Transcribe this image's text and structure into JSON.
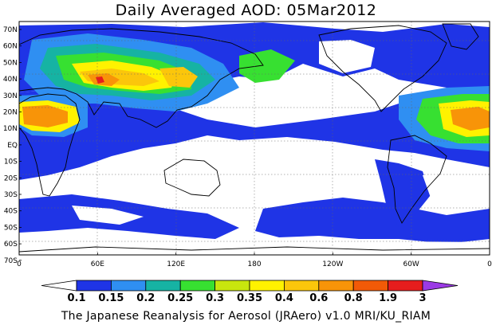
{
  "title": "Daily Averaged AOD: 05Mar2012",
  "credit": "The Japanese Reanalysis for Aerosol (JRAero) v1.0 MRI/KU_RIAM",
  "lat_labels": [
    "70N",
    "60N",
    "50N",
    "40N",
    "30N",
    "20N",
    "10N",
    "EQ",
    "10S",
    "20S",
    "30S",
    "40S",
    "50S",
    "60S",
    "70S"
  ],
  "lon_labels": [
    "0",
    "60E",
    "120E",
    "180",
    "120W",
    "60W",
    "0"
  ],
  "colorbar": {
    "labels": [
      "0.1",
      "0.15",
      "0.2",
      "0.25",
      "0.3",
      "0.35",
      "0.4",
      "0.6",
      "0.8",
      "1.9",
      "3"
    ],
    "colors": [
      "#ffffff",
      "#1f34e6",
      "#2f8ff2",
      "#16b3a3",
      "#37e031",
      "#c8e60e",
      "#fff200",
      "#fbc60b",
      "#f89408",
      "#f25a07",
      "#e61d1d",
      "#9b3ae5"
    ]
  }
}
